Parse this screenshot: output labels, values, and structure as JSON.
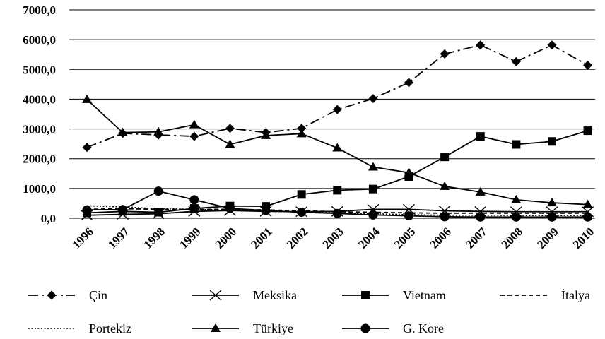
{
  "chart_data": {
    "type": "line",
    "title": "",
    "xlabel": "",
    "ylabel": "",
    "ylim": [
      0,
      7000
    ],
    "grid": "horizontal",
    "legend_position": "bottom",
    "categories": [
      "1996",
      "1997",
      "1998",
      "1999",
      "2000",
      "2001",
      "2002",
      "2003",
      "2004",
      "2005",
      "2006",
      "2007",
      "2008",
      "2009",
      "2010"
    ],
    "y_ticks": [
      "0,0",
      "1000,0",
      "2000,0",
      "3000,0",
      "4000,0",
      "5000,0",
      "6000,0",
      "7000,0"
    ],
    "series": [
      {
        "name": "Çin",
        "style": "dashdot",
        "marker": "diamond",
        "values": [
          2380,
          2850,
          2800,
          2750,
          3020,
          2880,
          3020,
          3650,
          4020,
          4560,
          5520,
          5820,
          5260,
          5820,
          5140
        ]
      },
      {
        "name": "Meksika",
        "style": "solid",
        "marker": "x",
        "values": [
          100,
          130,
          150,
          230,
          260,
          230,
          220,
          230,
          300,
          300,
          250,
          230,
          220,
          220,
          220
        ]
      },
      {
        "name": "Vietnam",
        "style": "solid",
        "marker": "square",
        "values": [
          180,
          230,
          200,
          330,
          410,
          400,
          800,
          940,
          980,
          1400,
          2060,
          2750,
          2480,
          2580,
          2940
        ]
      },
      {
        "name": "İtalya",
        "style": "dashed",
        "marker": "none",
        "values": [
          300,
          320,
          300,
          300,
          300,
          280,
          250,
          220,
          200,
          180,
          170,
          170,
          170,
          170,
          170
        ]
      },
      {
        "name": "Portekiz",
        "style": "dotted",
        "marker": "none",
        "values": [
          420,
          380,
          320,
          300,
          280,
          250,
          210,
          180,
          150,
          120,
          100,
          100,
          90,
          90,
          90
        ]
      },
      {
        "name": "Türkiye",
        "style": "solid",
        "marker": "triangle",
        "values": [
          3990,
          2880,
          2900,
          3140,
          2480,
          2780,
          2840,
          2360,
          1720,
          1530,
          1070,
          880,
          620,
          520,
          460
        ]
      },
      {
        "name": "G. Kore",
        "style": "solid",
        "marker": "circle",
        "values": [
          280,
          290,
          910,
          620,
          330,
          260,
          200,
          160,
          110,
          80,
          50,
          40,
          40,
          40,
          40
        ]
      }
    ]
  }
}
